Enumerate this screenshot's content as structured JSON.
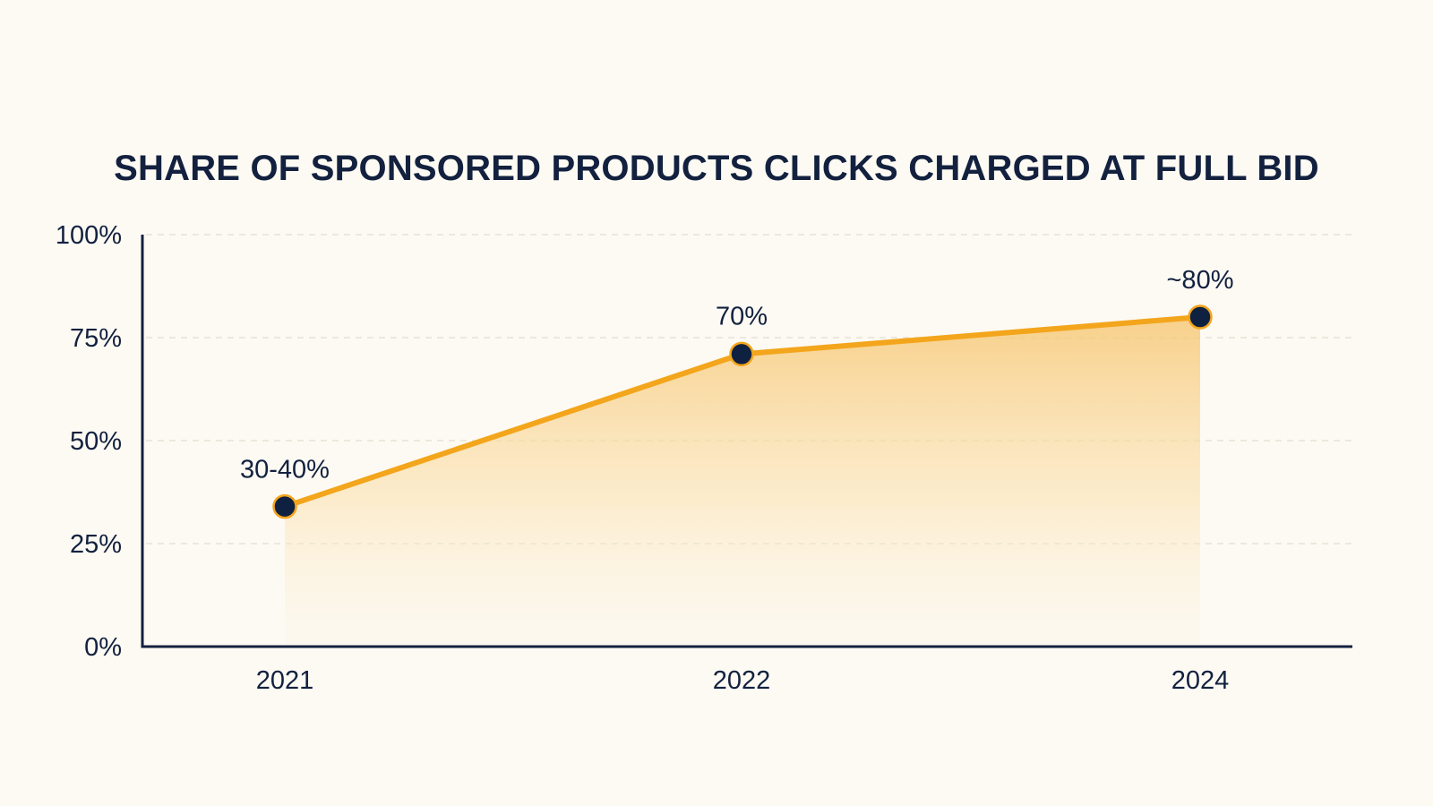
{
  "chart_data": {
    "type": "line",
    "title": "SHARE OF SPONSORED PRODUCTS CLICKS CHARGED AT FULL BID",
    "xlabel": "",
    "ylabel": "",
    "categories": [
      "2021",
      "2022",
      "2024"
    ],
    "series": [
      {
        "values": [
          34,
          71,
          80
        ],
        "data_labels": [
          "30-40%",
          "70%",
          "~80%"
        ]
      }
    ],
    "ylim": [
      0,
      100
    ],
    "yticks": [
      0,
      25,
      50,
      75,
      100
    ],
    "ytick_labels": [
      "0%",
      "25%",
      "50%",
      "75%",
      "100%"
    ],
    "grid": true,
    "area_fill": true,
    "colors": {
      "line": "#F3A51C",
      "marker": "#0F2141",
      "axis": "#13213F",
      "text": "#13213F",
      "grid": "#E6E1D6",
      "background": "#FCFAF3"
    }
  }
}
